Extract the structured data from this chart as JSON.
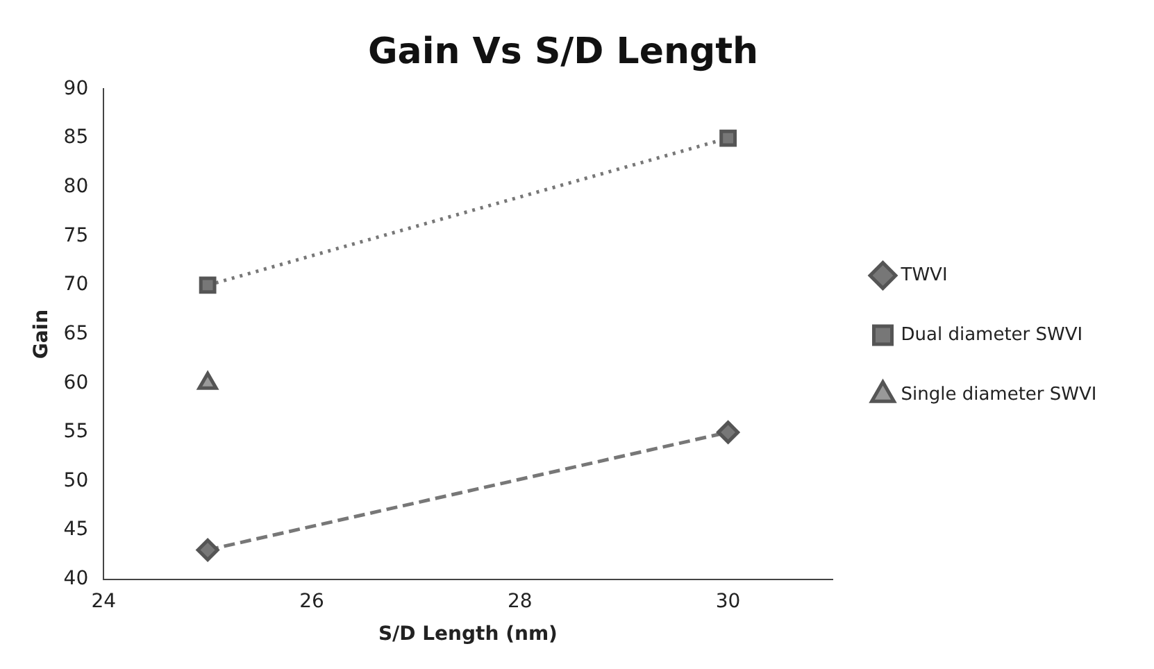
{
  "chart_data": {
    "type": "line",
    "title": "Gain Vs S/D Length",
    "xlabel": "S/D Length (nm)",
    "ylabel": "Gain",
    "xlim": [
      24,
      31
    ],
    "xticks": [
      24,
      26,
      28,
      30
    ],
    "ylim": [
      40,
      90
    ],
    "yticks": [
      40,
      45,
      50,
      55,
      60,
      65,
      70,
      75,
      80,
      85,
      90
    ],
    "grid": false,
    "legend": "right",
    "x": [
      25,
      30
    ],
    "series": [
      {
        "name": "TWVI",
        "color": "#777777",
        "values": [
          43,
          55
        ],
        "marker": "diamond",
        "line_style": "dashed"
      },
      {
        "name": "Dual diameter SWVI",
        "color": "#777777",
        "values": [
          70,
          85
        ],
        "marker": "square",
        "line_style": "dotted"
      },
      {
        "name": "Single diameter SWVI",
        "color": "#999999",
        "values": [
          60,
          null
        ],
        "marker": "triangle",
        "line_style": "solid"
      }
    ]
  }
}
